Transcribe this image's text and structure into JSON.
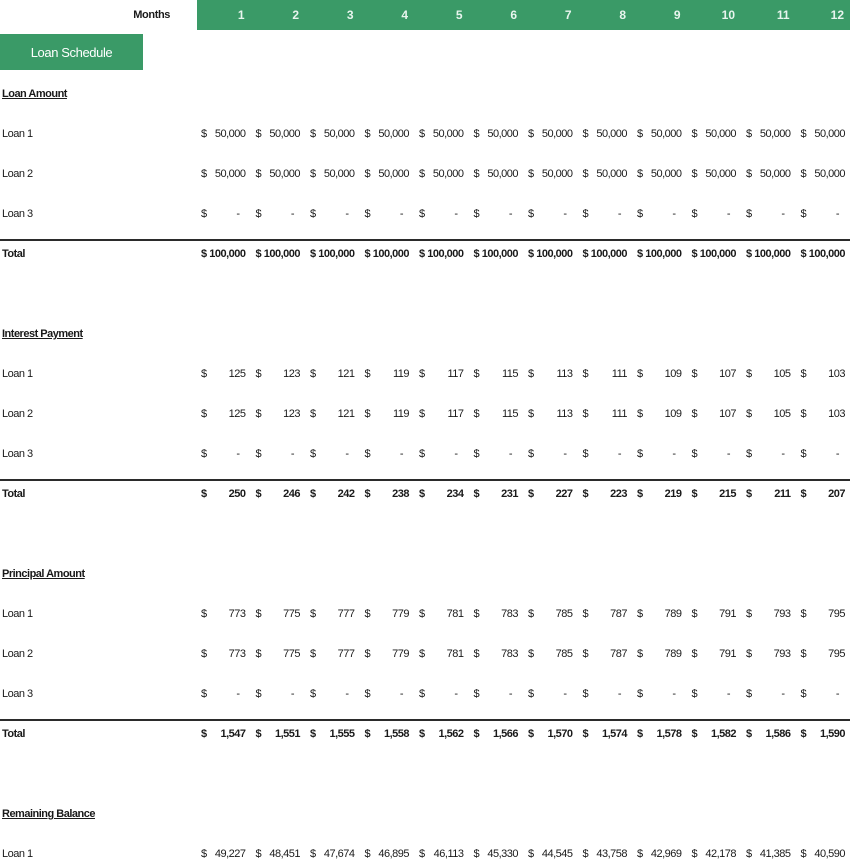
{
  "header": {
    "months_label": "Months",
    "months": [
      "1",
      "2",
      "3",
      "4",
      "5",
      "6",
      "7",
      "8",
      "9",
      "10",
      "11",
      "12"
    ]
  },
  "title": "Loan Schedule",
  "currency": "$",
  "sections": [
    {
      "title": "Loan Amount",
      "rows": [
        {
          "label": "Loan 1",
          "values": [
            "50,000",
            "50,000",
            "50,000",
            "50,000",
            "50,000",
            "50,000",
            "50,000",
            "50,000",
            "50,000",
            "50,000",
            "50,000",
            "50,000"
          ]
        },
        {
          "label": "Loan 2",
          "values": [
            "50,000",
            "50,000",
            "50,000",
            "50,000",
            "50,000",
            "50,000",
            "50,000",
            "50,000",
            "50,000",
            "50,000",
            "50,000",
            "50,000"
          ]
        },
        {
          "label": "Loan 3",
          "values": [
            "-",
            "-",
            "-",
            "-",
            "-",
            "-",
            "-",
            "-",
            "-",
            "-",
            "-",
            "-"
          ]
        }
      ],
      "total": {
        "label": "Total",
        "values": [
          "100,000",
          "100,000",
          "100,000",
          "100,000",
          "100,000",
          "100,000",
          "100,000",
          "100,000",
          "100,000",
          "100,000",
          "100,000",
          "100,000"
        ]
      }
    },
    {
      "title": "Interest Payment",
      "rows": [
        {
          "label": "Loan 1",
          "values": [
            "125",
            "123",
            "121",
            "119",
            "117",
            "115",
            "113",
            "111",
            "109",
            "107",
            "105",
            "103"
          ]
        },
        {
          "label": "Loan 2",
          "values": [
            "125",
            "123",
            "121",
            "119",
            "117",
            "115",
            "113",
            "111",
            "109",
            "107",
            "105",
            "103"
          ]
        },
        {
          "label": "Loan 3",
          "values": [
            "-",
            "-",
            "-",
            "-",
            "-",
            "-",
            "-",
            "-",
            "-",
            "-",
            "-",
            "-"
          ]
        }
      ],
      "total": {
        "label": "Total",
        "values": [
          "250",
          "246",
          "242",
          "238",
          "234",
          "231",
          "227",
          "223",
          "219",
          "215",
          "211",
          "207"
        ]
      }
    },
    {
      "title": "Principal Amount",
      "rows": [
        {
          "label": "Loan 1",
          "values": [
            "773",
            "775",
            "777",
            "779",
            "781",
            "783",
            "785",
            "787",
            "789",
            "791",
            "793",
            "795"
          ]
        },
        {
          "label": "Loan 2",
          "values": [
            "773",
            "775",
            "777",
            "779",
            "781",
            "783",
            "785",
            "787",
            "789",
            "791",
            "793",
            "795"
          ]
        },
        {
          "label": "Loan 3",
          "values": [
            "-",
            "-",
            "-",
            "-",
            "-",
            "-",
            "-",
            "-",
            "-",
            "-",
            "-",
            "-"
          ]
        }
      ],
      "total": {
        "label": "Total",
        "values": [
          "1,547",
          "1,551",
          "1,555",
          "1,558",
          "1,562",
          "1,566",
          "1,570",
          "1,574",
          "1,578",
          "1,582",
          "1,586",
          "1,590"
        ]
      }
    },
    {
      "title": "Remaining Balance",
      "rows": [
        {
          "label": "Loan 1",
          "values": [
            "49,227",
            "48,451",
            "47,674",
            "46,895",
            "46,113",
            "45,330",
            "44,545",
            "43,758",
            "42,969",
            "42,178",
            "41,385",
            "40,590"
          ]
        }
      ]
    }
  ]
}
